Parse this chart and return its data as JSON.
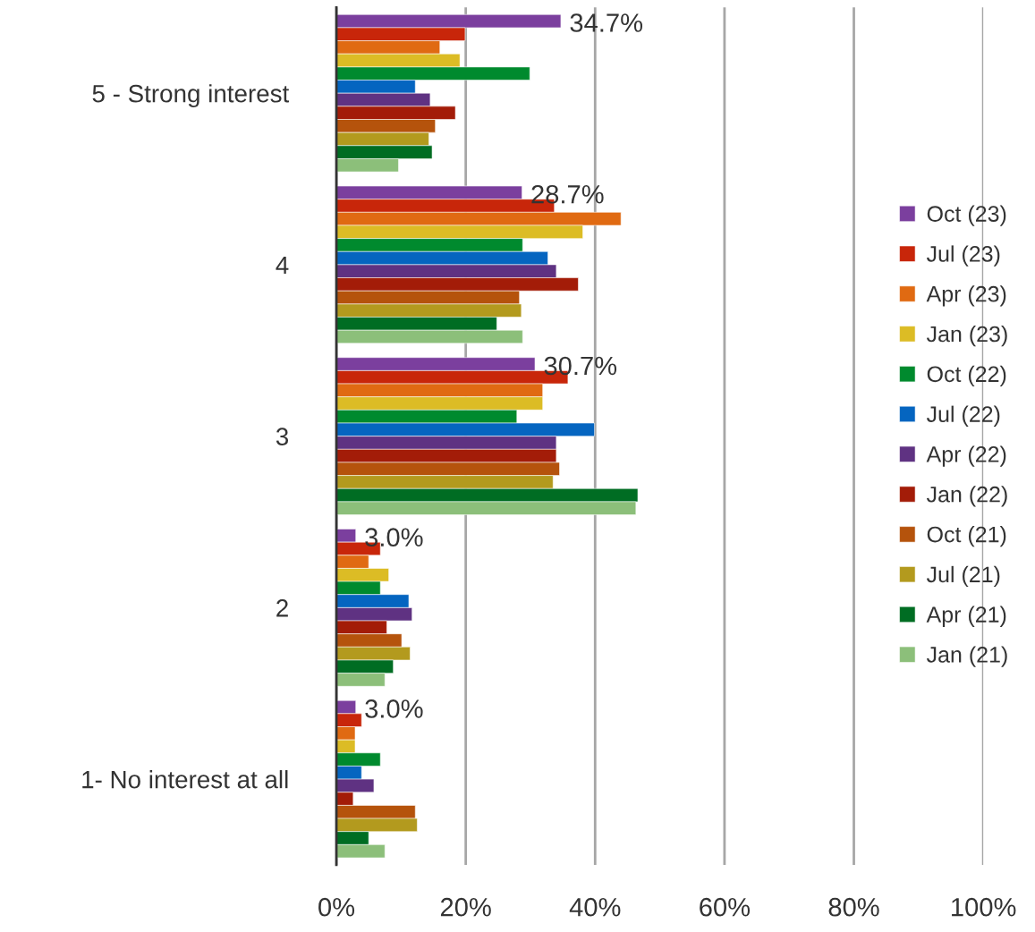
{
  "chart_data": {
    "type": "bar",
    "orientation": "horizontal",
    "categories": [
      "5 - Strong interest",
      "4",
      "3",
      "2",
      "1- No interest at all"
    ],
    "series": [
      {
        "name": "Oct (23)",
        "color": "#7b3f9e",
        "values": [
          34.7,
          28.7,
          30.7,
          3.0,
          3.0
        ],
        "value_labels": [
          "34.7%",
          "28.7%",
          "30.7%",
          "3.0%",
          "3.0%"
        ]
      },
      {
        "name": "Jul (23)",
        "color": "#c8260a",
        "values": [
          19.9,
          33.7,
          35.8,
          6.8,
          3.9
        ]
      },
      {
        "name": "Apr (23)",
        "color": "#e06a12",
        "values": [
          16.0,
          44.0,
          31.9,
          5.0,
          2.9
        ]
      },
      {
        "name": "Jan (23)",
        "color": "#dcbc25",
        "values": [
          19.1,
          38.1,
          31.9,
          8.1,
          2.9
        ]
      },
      {
        "name": "Oct (22)",
        "color": "#008a2e",
        "values": [
          29.9,
          28.8,
          27.9,
          6.8,
          6.8
        ]
      },
      {
        "name": "Jul (22)",
        "color": "#0565c0",
        "values": [
          12.2,
          32.7,
          39.9,
          11.2,
          3.9
        ]
      },
      {
        "name": "Apr (22)",
        "color": "#5f3282",
        "values": [
          14.5,
          34.0,
          34.0,
          11.7,
          5.8
        ]
      },
      {
        "name": "Jan (22)",
        "color": "#a31c08",
        "values": [
          18.4,
          37.4,
          34.0,
          7.8,
          2.6
        ]
      },
      {
        "name": "Oct (21)",
        "color": "#b5530c",
        "values": [
          15.3,
          28.3,
          34.5,
          10.1,
          12.2
        ]
      },
      {
        "name": "Jul (21)",
        "color": "#b39a1e",
        "values": [
          14.3,
          28.6,
          33.5,
          11.4,
          12.5
        ]
      },
      {
        "name": "Apr (21)",
        "color": "#006d23",
        "values": [
          14.8,
          24.8,
          46.6,
          8.8,
          5.0
        ]
      },
      {
        "name": "Jan (21)",
        "color": "#8cbf7a",
        "values": [
          9.6,
          28.8,
          46.3,
          7.5,
          7.5
        ]
      }
    ],
    "xlim": [
      0,
      100
    ],
    "xticks": [
      {
        "value": 0,
        "label": "0%"
      },
      {
        "value": 20,
        "label": "20%"
      },
      {
        "value": 40,
        "label": "40%"
      },
      {
        "value": 60,
        "label": "60%"
      },
      {
        "value": 80,
        "label": "80%"
      },
      {
        "value": 100,
        "label": "100%"
      }
    ],
    "grid": "x",
    "legend": "right"
  }
}
